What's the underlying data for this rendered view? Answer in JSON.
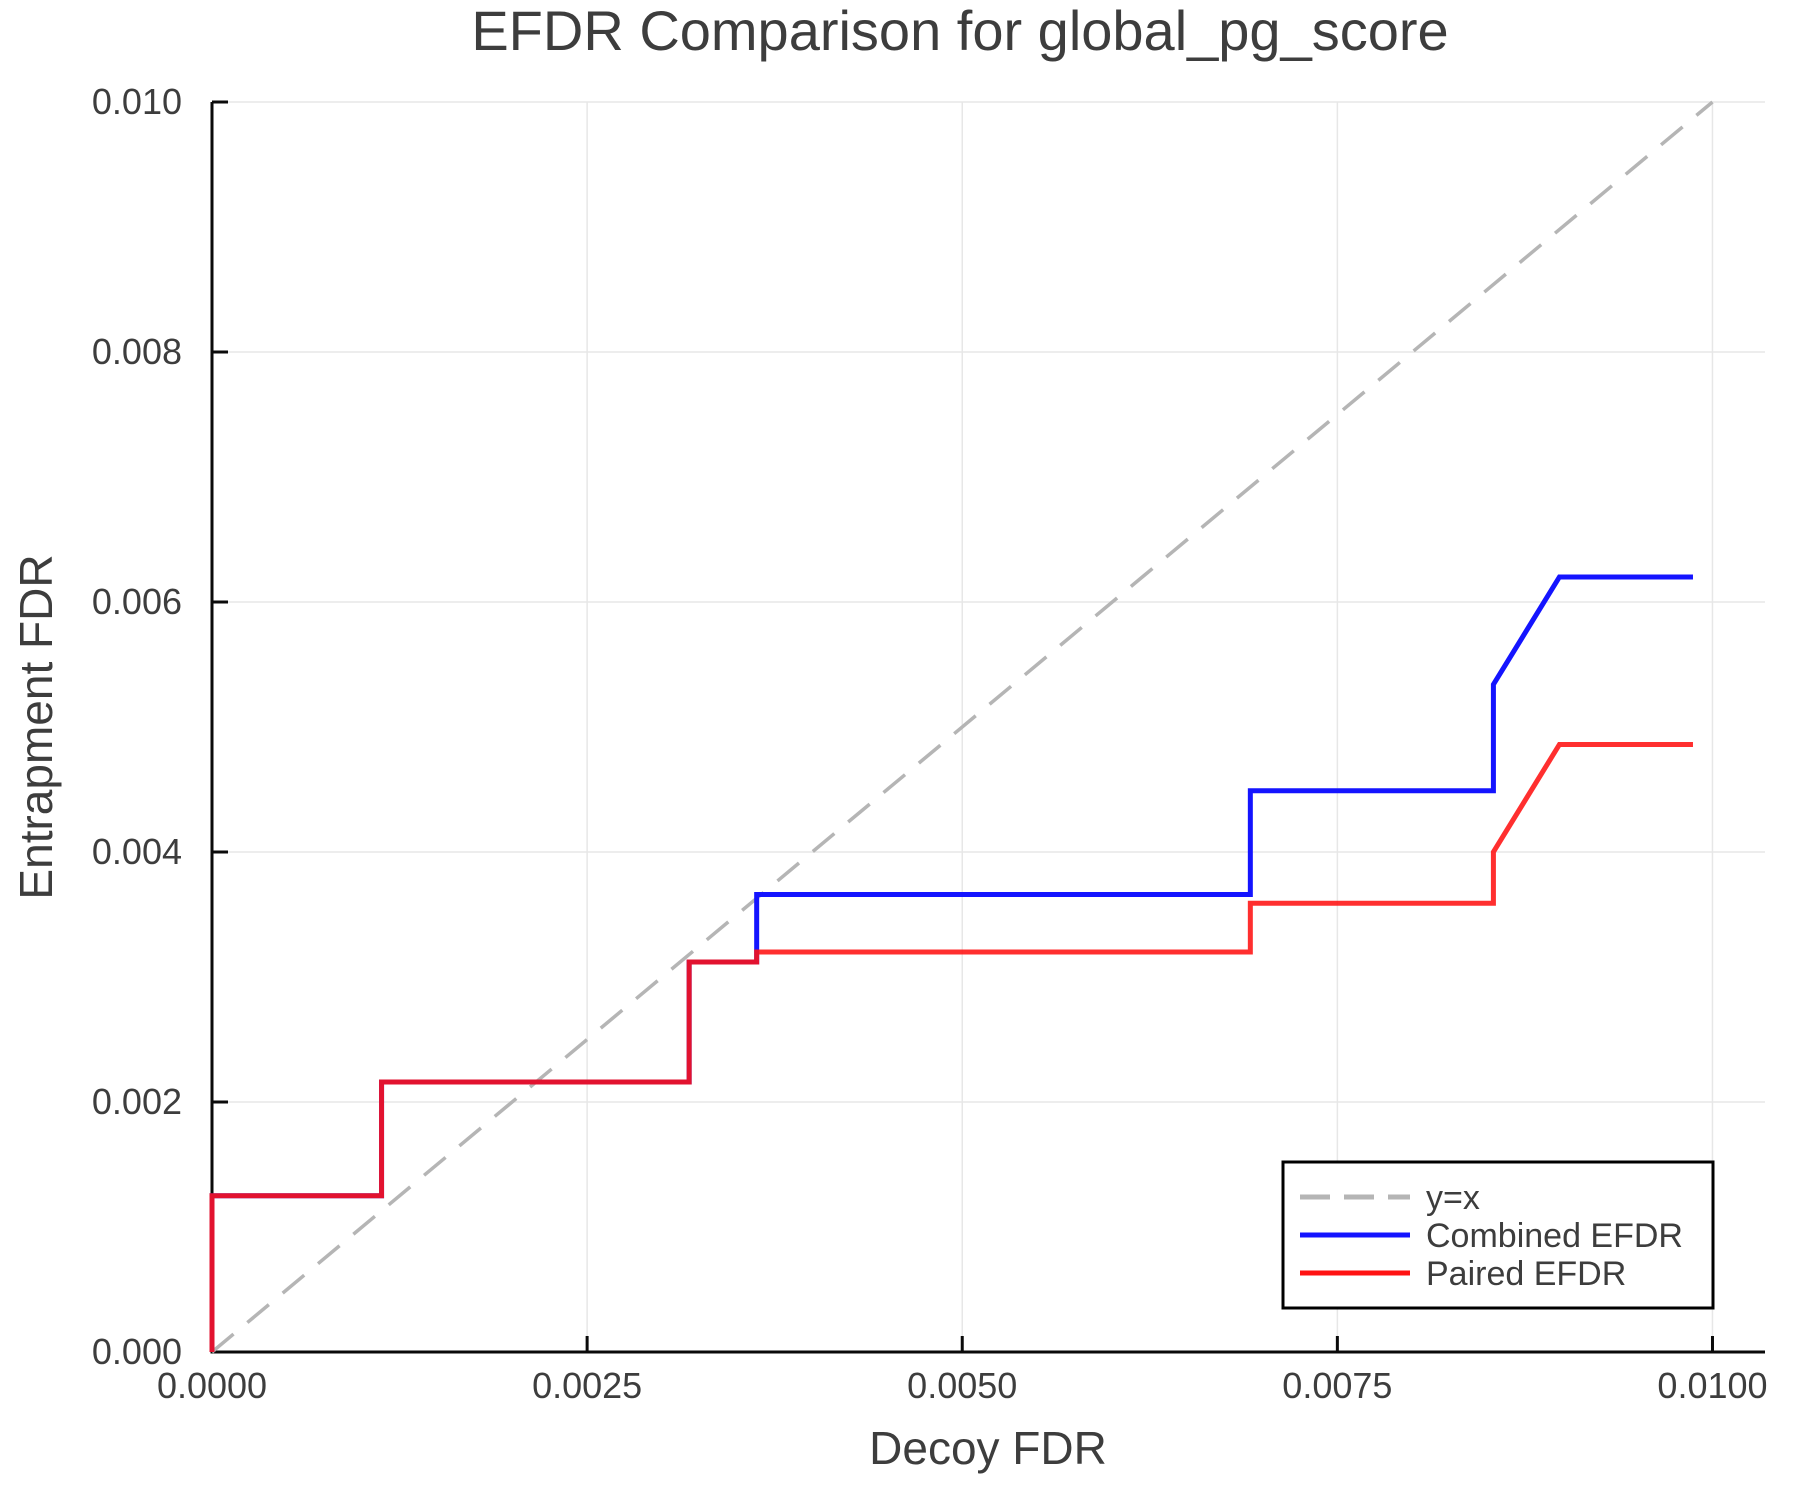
{
  "chart_data": {
    "type": "line",
    "title": "EFDR Comparison for global_pg_score",
    "xlabel": "Decoy FDR",
    "ylabel": "Entrapment FDR",
    "xlim": [
      0,
      0.01035
    ],
    "ylim": [
      0,
      0.01
    ],
    "grid": true,
    "legend_position": "bottom-right",
    "x_ticks": {
      "values": [
        0,
        0.0025,
        0.005,
        0.0075,
        0.01
      ],
      "labels": [
        "0.0000",
        "0.0025",
        "0.0050",
        "0.0075",
        "0.0100"
      ]
    },
    "y_ticks": {
      "values": [
        0,
        0.002,
        0.004,
        0.006,
        0.008,
        0.01
      ],
      "labels": [
        "0.000",
        "0.002",
        "0.004",
        "0.006",
        "0.008",
        "0.010"
      ]
    },
    "series": [
      {
        "name": "y=x",
        "style": "dashed",
        "color": "#B5B5B5",
        "width": 3.5,
        "points": [
          [
            0,
            0
          ],
          [
            0.01,
            0.01
          ]
        ]
      },
      {
        "name": "Combined EFDR",
        "style": "solid",
        "color": "#1414FF",
        "width": 5,
        "points": [
          [
            0,
            0
          ],
          [
            0,
            0.00125
          ],
          [
            0.00113,
            0.00125
          ],
          [
            0.00113,
            0.00216
          ],
          [
            0.00318,
            0.00216
          ],
          [
            0.00318,
            0.00312
          ],
          [
            0.00363,
            0.00312
          ],
          [
            0.00363,
            0.00366
          ],
          [
            0.00692,
            0.00366
          ],
          [
            0.00692,
            0.00449
          ],
          [
            0.00854,
            0.00449
          ],
          [
            0.00854,
            0.00534
          ],
          [
            0.00898,
            0.0062
          ],
          [
            0.00987,
            0.0062
          ]
        ]
      },
      {
        "name": "Paired EFDR",
        "style": "solid",
        "color": "#FF1212",
        "width": 5,
        "opacity": 0.88,
        "points": [
          [
            0,
            0
          ],
          [
            0,
            0.00125
          ],
          [
            0.00113,
            0.00125
          ],
          [
            0.00113,
            0.00216
          ],
          [
            0.00318,
            0.00216
          ],
          [
            0.00318,
            0.00312
          ],
          [
            0.00363,
            0.00312
          ],
          [
            0.00363,
            0.0032
          ],
          [
            0.00692,
            0.0032
          ],
          [
            0.00692,
            0.00359
          ],
          [
            0.00854,
            0.00359
          ],
          [
            0.00854,
            0.004
          ],
          [
            0.00898,
            0.00486
          ],
          [
            0.00987,
            0.00486
          ]
        ]
      }
    ]
  }
}
